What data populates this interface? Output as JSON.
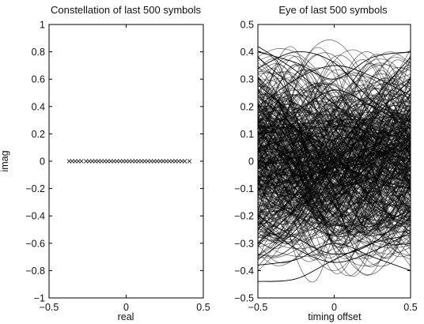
{
  "chart_data": [
    {
      "type": "scatter",
      "title": "Constellation of last 500 symbols",
      "xlabel": "real",
      "ylabel": "imag",
      "xlim": [
        -0.5,
        0.5
      ],
      "ylim": [
        -1,
        1
      ],
      "xticks": [
        "-0.5",
        "0",
        "0.5"
      ],
      "yticks": [
        "1",
        "0.8",
        "0.6",
        "0.4",
        "0.2",
        "0",
        "-0.2",
        "-0.4",
        "-0.6",
        "-0.8",
        "-1"
      ],
      "grid": false,
      "marker": "x",
      "series": [
        {
          "x": [
            -0.37,
            -0.35,
            -0.33,
            -0.31,
            -0.29,
            -0.26,
            -0.24,
            -0.22,
            -0.2,
            -0.18,
            -0.16,
            -0.14,
            -0.12,
            -0.1,
            -0.08,
            -0.06,
            -0.04,
            -0.02,
            0.0,
            0.02,
            0.04,
            0.06,
            0.08,
            0.1,
            0.12,
            0.14,
            0.16,
            0.18,
            0.2,
            0.22,
            0.24,
            0.26,
            0.28,
            0.3,
            0.32,
            0.34,
            0.36,
            0.38,
            0.41
          ],
          "y": [
            0,
            0,
            0,
            0,
            0,
            0,
            0,
            0,
            0,
            0,
            0,
            0,
            0,
            0,
            0,
            0,
            0,
            0,
            0,
            0,
            0,
            0,
            0,
            0,
            0,
            0,
            0,
            0,
            0,
            0,
            0,
            0,
            0,
            0,
            0,
            0,
            0,
            0,
            0
          ]
        }
      ]
    },
    {
      "type": "line",
      "title": "Eye of last 500 symbols",
      "xlabel": "timing offset",
      "ylabel": "",
      "xlim": [
        -0.5,
        0.5
      ],
      "ylim": [
        -0.5,
        0.5
      ],
      "xticks": [
        "-0.5",
        "0",
        "0.5"
      ],
      "yticks": [
        "0.5",
        "0.4",
        "0.3",
        "0.2",
        "0.1",
        "0",
        "-0.1",
        "-0.2",
        "-0.3",
        "-0.4",
        "-0.5"
      ],
      "grid": false,
      "series_count": 500,
      "traces": [
        {
          "x": [
            -0.5,
            -0.25,
            0,
            0.25,
            0.5
          ],
          "y": [
            0.42,
            0.33,
            0.21,
            0.12,
            0.08
          ]
        },
        {
          "x": [
            -0.5,
            -0.25,
            0,
            0.25,
            0.5
          ],
          "y": [
            -0.44,
            -0.43,
            -0.36,
            -0.3,
            -0.27
          ]
        },
        {
          "x": [
            -0.5,
            -0.25,
            0,
            0.25,
            0.5
          ],
          "y": [
            0.38,
            0.26,
            0.12,
            -0.05,
            -0.1
          ]
        },
        {
          "x": [
            -0.5,
            -0.25,
            0,
            0.25,
            0.5
          ],
          "y": [
            -0.36,
            -0.25,
            -0.05,
            0.15,
            0.3
          ]
        },
        {
          "x": [
            -0.5,
            -0.25,
            0,
            0.25,
            0.5
          ],
          "y": [
            0.34,
            0.4,
            0.36,
            0.22,
            0.14
          ]
        },
        {
          "x": [
            -0.5,
            -0.25,
            0,
            0.25,
            0.5
          ],
          "y": [
            -0.2,
            -0.28,
            -0.34,
            -0.3,
            -0.18
          ]
        },
        {
          "x": [
            -0.5,
            -0.25,
            0,
            0.25,
            0.5
          ],
          "y": [
            0.28,
            0.16,
            0.02,
            -0.14,
            -0.26
          ]
        },
        {
          "x": [
            -0.5,
            -0.25,
            0,
            0.25,
            0.5
          ],
          "y": [
            -0.3,
            -0.17,
            0.02,
            0.22,
            0.38
          ]
        },
        {
          "x": [
            -0.5,
            -0.25,
            0,
            0.25,
            0.5
          ],
          "y": [
            0.2,
            0.3,
            0.35,
            0.31,
            0.24
          ]
        },
        {
          "x": [
            -0.5,
            -0.25,
            0,
            0.25,
            0.5
          ],
          "y": [
            -0.22,
            -0.32,
            -0.37,
            -0.33,
            -0.26
          ]
        },
        {
          "x": [
            -0.5,
            -0.25,
            0,
            0.25,
            0.5
          ],
          "y": [
            0.4,
            0.36,
            0.3,
            0.38,
            0.4
          ]
        },
        {
          "x": [
            -0.5,
            -0.25,
            0,
            0.25,
            0.5
          ],
          "y": [
            -0.38,
            -0.36,
            -0.3,
            -0.35,
            -0.4
          ]
        },
        {
          "x": [
            -0.5,
            -0.25,
            0,
            0.25,
            0.5
          ],
          "y": [
            0.1,
            0.18,
            0.26,
            0.2,
            0.12
          ]
        },
        {
          "x": [
            -0.5,
            -0.25,
            0,
            0.25,
            0.5
          ],
          "y": [
            -0.12,
            -0.2,
            -0.27,
            -0.2,
            -0.1
          ]
        },
        {
          "x": [
            -0.5,
            -0.25,
            0,
            0.25,
            0.5
          ],
          "y": [
            0.24,
            0.12,
            -0.02,
            -0.16,
            -0.22
          ]
        },
        {
          "x": [
            -0.5,
            -0.25,
            0,
            0.25,
            0.5
          ],
          "y": [
            -0.25,
            -0.12,
            0.04,
            0.18,
            0.26
          ]
        }
      ]
    }
  ]
}
